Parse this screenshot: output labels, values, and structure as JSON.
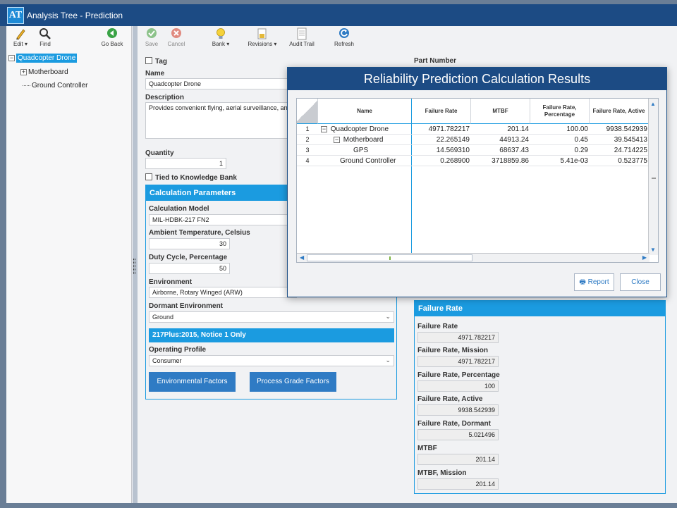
{
  "app": {
    "logo": "AT",
    "title": "Analysis Tree - Prediction"
  },
  "toolbar_left": [
    {
      "label": "Edit ▾",
      "icon": "pencil-icon"
    },
    {
      "label": "Find",
      "icon": "magnifier-icon"
    },
    {
      "label": "Go Back",
      "icon": "back-arrow-icon"
    }
  ],
  "toolbar_main": [
    {
      "label": "Save",
      "icon": "check-icon"
    },
    {
      "label": "Cancel",
      "icon": "cancel-icon"
    },
    {
      "label": "Bank ▾",
      "icon": "lightbulb-icon"
    },
    {
      "label": "Revisions ▾",
      "icon": "revisions-icon"
    },
    {
      "label": "Audit Trail",
      "icon": "audit-icon"
    },
    {
      "label": "Refresh",
      "icon": "refresh-icon"
    }
  ],
  "tree": {
    "root": "Quadcopter Drone",
    "child1": "Motherboard",
    "child2": "Ground Controller"
  },
  "form": {
    "tag_label": "Tag",
    "part_number_label": "Part Number",
    "name_label": "Name",
    "name_value": "Quadcopter Drone",
    "description_label": "Description",
    "description_value": "Provides convenient flying, aerial surveillance, and",
    "quantity_label": "Quantity",
    "quantity_value": "1",
    "tied_label": "Tied to Knowledge Bank"
  },
  "calc_params": {
    "header": "Calculation Parameters",
    "model_label": "Calculation Model",
    "model_value": "MIL-HDBK-217 FN2",
    "ambient_label": "Ambient Temperature, Celsius",
    "ambient_value": "30",
    "duty_label": "Duty Cycle, Percentage",
    "duty_value": "50",
    "env_label": "Environment",
    "env_value": "Airborne, Rotary Winged (ARW)",
    "dormant_label": "Dormant Environment",
    "dormant_value": "Ground",
    "notice_bar": "217Plus:2015, Notice 1 Only",
    "profile_label": "Operating Profile",
    "profile_value": "Consumer",
    "env_factors_btn": "Environmental Factors",
    "process_btn": "Process Grade Factors"
  },
  "failure_rate_panel": {
    "header": "Failure Rate",
    "fields": [
      {
        "label": "Failure Rate",
        "value": "4971.782217"
      },
      {
        "label": "Failure Rate, Mission",
        "value": "4971.782217"
      },
      {
        "label": "Failure Rate, Percentage",
        "value": "100"
      },
      {
        "label": "Failure Rate, Active",
        "value": "9938.542939"
      },
      {
        "label": "Failure Rate, Dormant",
        "value": "5.021496"
      },
      {
        "label": "MTBF",
        "value": "201.14"
      },
      {
        "label": "MTBF, Mission",
        "value": "201.14"
      }
    ]
  },
  "modal": {
    "title": "Reliability Prediction Calculation Results",
    "columns": [
      "Name",
      "Failure Rate",
      "MTBF",
      "Failure Rate, Percentage",
      "Failure Rate, Active"
    ],
    "rows": [
      {
        "num": "1",
        "name": "Quadcopter Drone",
        "fr": "4971.782217",
        "mtbf": "201.14",
        "pct": "100.00",
        "active": "9938.542939"
      },
      {
        "num": "2",
        "name": "Motherboard",
        "fr": "22.265149",
        "mtbf": "44913.24",
        "pct": "0.45",
        "active": "39.545413"
      },
      {
        "num": "3",
        "name": "GPS",
        "fr": "14.569310",
        "mtbf": "68637.43",
        "pct": "0.29",
        "active": "24.714225"
      },
      {
        "num": "4",
        "name": "Ground Controller",
        "fr": "0.268900",
        "mtbf": "3718859.86",
        "pct": "5.41e-03",
        "active": "0.523775"
      }
    ],
    "report_btn": "Report",
    "close_btn": "Close"
  }
}
